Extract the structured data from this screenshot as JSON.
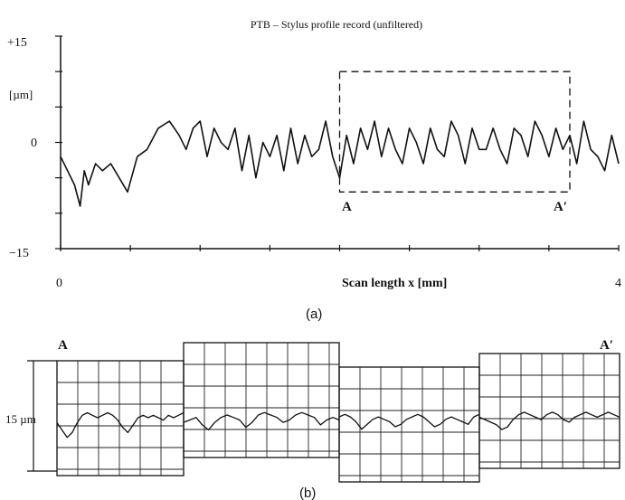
{
  "chart_data": [
    {
      "type": "line",
      "panel_label": "(a)",
      "title": "PTB – Stylus profile record (unfiltered)",
      "xlabel": "Scan length  x  [mm]",
      "ylabel": "[µm]",
      "xlim": [
        0,
        4
      ],
      "ylim": [
        -15,
        15
      ],
      "x_tick_labels": [
        {
          "value": 0,
          "label": "0"
        },
        {
          "value": 4,
          "label": "4"
        }
      ],
      "y_tick_labels": [
        {
          "value": 15,
          "label": "+15"
        },
        {
          "value": 0,
          "label": "0"
        },
        {
          "value": -15,
          "label": "−15"
        }
      ],
      "grid": false,
      "inset_box": {
        "x_range": [
          2.0,
          3.65
        ],
        "y_range": [
          -7,
          10
        ],
        "left_label": "A",
        "right_label": "A′"
      },
      "series": [
        {
          "x": [
            0.0,
            0.05,
            0.1,
            0.14,
            0.17,
            0.2,
            0.25,
            0.3,
            0.36,
            0.42,
            0.48,
            0.55,
            0.62,
            0.7,
            0.78,
            0.85,
            0.9,
            0.95,
            1.0,
            1.05,
            1.1,
            1.15,
            1.2,
            1.25,
            1.3,
            1.35,
            1.4,
            1.45,
            1.5,
            1.55,
            1.6,
            1.65,
            1.7,
            1.75,
            1.8,
            1.85,
            1.9,
            1.95,
            2.0,
            2.05,
            2.1,
            2.15,
            2.2,
            2.25,
            2.3,
            2.35,
            2.4,
            2.45,
            2.5,
            2.55,
            2.6,
            2.65,
            2.7,
            2.75,
            2.8,
            2.85,
            2.9,
            2.95,
            3.0,
            3.05,
            3.1,
            3.15,
            3.2,
            3.25,
            3.3,
            3.35,
            3.4,
            3.45,
            3.5,
            3.55,
            3.6,
            3.65,
            3.7,
            3.75,
            3.8,
            3.85,
            3.9,
            3.95,
            4.0
          ],
          "y": [
            -2,
            -4,
            -6,
            -9,
            -4,
            -6,
            -3,
            -4,
            -3,
            -5,
            -7,
            -2,
            -1,
            2,
            3,
            1,
            -1,
            2,
            3,
            -2,
            2,
            0,
            -1,
            2,
            -4,
            1,
            -5,
            0,
            -2,
            1,
            -4,
            2,
            -3,
            1,
            -2,
            -1,
            3,
            -2,
            -5,
            1,
            -3,
            2,
            -1,
            3,
            -2,
            2,
            -1,
            -3,
            2,
            0,
            -3,
            2,
            -1,
            -2,
            3,
            1,
            -3,
            2,
            -1,
            -1,
            2,
            -1,
            -3,
            2,
            1,
            -2,
            3,
            1,
            -2,
            2,
            -1,
            1,
            -3,
            3,
            -1,
            -2,
            -4,
            1,
            -3
          ]
        }
      ]
    },
    {
      "type": "line",
      "panel_label": "(b)",
      "left_label": "A",
      "right_label": "A′",
      "scale_label": "15 µm",
      "grid": true,
      "segments": [
        {
          "y_offset_um": 0,
          "x": [
            0,
            0.04,
            0.08,
            0.12,
            0.16,
            0.2,
            0.24,
            0.28,
            0.32,
            0.36,
            0.4,
            0.44,
            0.48,
            0.52,
            0.56,
            0.6,
            0.64,
            0.68,
            0.72,
            0.76,
            0.8,
            0.84,
            0.88,
            0.92,
            0.96,
            1.0
          ],
          "y": [
            -2,
            -5,
            -8,
            -6,
            -2,
            1,
            2,
            1,
            0,
            1,
            2,
            1,
            -1,
            -4,
            -6,
            -3,
            0,
            1,
            0,
            1,
            0,
            -1,
            1,
            0,
            1,
            2
          ]
        },
        {
          "y_offset_um": 5,
          "x": [
            0,
            0.04,
            0.08,
            0.12,
            0.16,
            0.2,
            0.24,
            0.28,
            0.32,
            0.36,
            0.4,
            0.44,
            0.48,
            0.52,
            0.56,
            0.6,
            0.64,
            0.68,
            0.72,
            0.76,
            0.8,
            0.84,
            0.88,
            0.92,
            0.96,
            1.0
          ],
          "y": [
            -3,
            -2,
            -1,
            -4,
            -6,
            -3,
            -1,
            0,
            -1,
            -2,
            -5,
            -3,
            0,
            1,
            0,
            -1,
            -3,
            -2,
            0,
            1,
            0,
            -1,
            -4,
            -2,
            -1,
            -2
          ]
        },
        {
          "y_offset_um": -3,
          "x": [
            0,
            0.04,
            0.08,
            0.12,
            0.16,
            0.2,
            0.24,
            0.28,
            0.32,
            0.36,
            0.4,
            0.44,
            0.48,
            0.52,
            0.56,
            0.6,
            0.64,
            0.68,
            0.72,
            0.76,
            0.8,
            0.84,
            0.88,
            0.92,
            0.96,
            1.0
          ],
          "y": [
            1,
            2,
            1,
            -1,
            -4,
            -2,
            0,
            1,
            0,
            -1,
            -3,
            -2,
            0,
            1,
            2,
            1,
            -1,
            -3,
            -2,
            0,
            1,
            0,
            -1,
            -2,
            1,
            2
          ]
        },
        {
          "y_offset_um": 1,
          "x": [
            0,
            0.04,
            0.08,
            0.12,
            0.16,
            0.2,
            0.24,
            0.28,
            0.32,
            0.36,
            0.4,
            0.44,
            0.48,
            0.52,
            0.56,
            0.6,
            0.64,
            0.68,
            0.72,
            0.76,
            0.8,
            0.84,
            0.88,
            0.92,
            0.96,
            1.0
          ],
          "y": [
            0,
            -1,
            -2,
            -3,
            -5,
            -4,
            -1,
            1,
            2,
            1,
            0,
            -1,
            1,
            2,
            1,
            -1,
            -2,
            0,
            1,
            2,
            1,
            0,
            1,
            2,
            1,
            0
          ]
        }
      ]
    }
  ]
}
